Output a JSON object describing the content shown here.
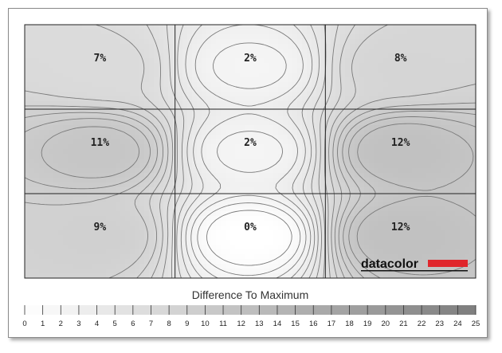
{
  "chart_data": {
    "type": "heatmap",
    "rows": 3,
    "cols": 3,
    "values": [
      [
        7,
        2,
        8
      ],
      [
        11,
        2,
        12
      ],
      [
        9,
        0,
        12
      ]
    ],
    "unit": "%",
    "legend_title": "Difference To Maximum",
    "scale_min": 0,
    "scale_max": 25,
    "scale_ticks": [
      "0",
      "1",
      "2",
      "3",
      "4",
      "5",
      "6",
      "7",
      "8",
      "9",
      "10",
      "11",
      "12",
      "13",
      "14",
      "15",
      "16",
      "17",
      "18",
      "19",
      "20",
      "21",
      "22",
      "23",
      "24",
      "25"
    ],
    "brand": "datacolor",
    "colors": {
      "low": "#ffffff",
      "high": "#7d7d7d",
      "contour": "#7a7a7a",
      "grid": "#222222",
      "brand_bar": "#e0262c"
    }
  }
}
